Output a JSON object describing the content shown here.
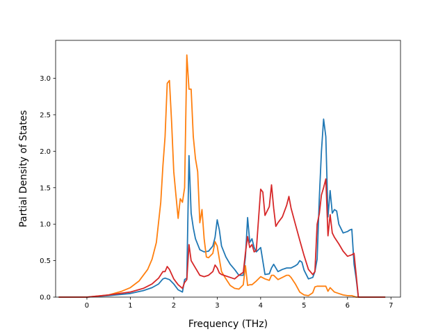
{
  "chart_data": {
    "type": "line",
    "title": "",
    "xlabel": "Frequency (THz)",
    "ylabel": "Partial Density of States",
    "xlim": [
      -0.72,
      7.22
    ],
    "ylim": [
      0.0,
      3.52
    ],
    "xticks": [
      0,
      1,
      2,
      3,
      4,
      5,
      6,
      7
    ],
    "xtick_labels": [
      "0",
      "1",
      "2",
      "3",
      "4",
      "5",
      "6",
      "7"
    ],
    "yticks": [
      0.0,
      0.5,
      1.0,
      1.5,
      2.0,
      2.5,
      3.0
    ],
    "ytick_labels": [
      "0.0",
      "0.5",
      "1.0",
      "1.5",
      "2.0",
      "2.5",
      "3.0"
    ],
    "grid": false,
    "legend": "none",
    "series": [
      {
        "color": "#1f77b4",
        "x": [
          -0.65,
          0.0,
          0.5,
          1.0,
          1.3,
          1.5,
          1.65,
          1.75,
          1.8,
          1.9,
          2.0,
          2.1,
          2.2,
          2.25,
          2.3,
          2.35,
          2.4,
          2.45,
          2.5,
          2.6,
          2.7,
          2.8,
          2.9,
          2.95,
          3.0,
          3.05,
          3.1,
          3.2,
          3.3,
          3.4,
          3.5,
          3.6,
          3.65,
          3.7,
          3.75,
          3.8,
          3.85,
          3.9,
          4.0,
          4.1,
          4.2,
          4.25,
          4.3,
          4.4,
          4.5,
          4.6,
          4.7,
          4.8,
          4.85,
          4.9,
          4.95,
          5.0,
          5.1,
          5.2,
          5.25,
          5.3,
          5.35,
          5.4,
          5.45,
          5.5,
          5.55,
          5.6,
          5.65,
          5.7,
          5.75,
          5.8,
          5.9,
          6.0,
          6.05,
          6.1,
          6.15,
          6.2,
          6.25,
          6.87
        ],
        "y": [
          0.0,
          0.0,
          0.02,
          0.05,
          0.09,
          0.13,
          0.18,
          0.25,
          0.26,
          0.24,
          0.18,
          0.1,
          0.07,
          0.24,
          0.26,
          1.94,
          1.15,
          0.95,
          0.8,
          0.65,
          0.62,
          0.63,
          0.7,
          0.82,
          1.06,
          0.92,
          0.7,
          0.55,
          0.45,
          0.38,
          0.3,
          0.3,
          0.55,
          1.09,
          0.75,
          0.8,
          0.68,
          0.62,
          0.68,
          0.31,
          0.32,
          0.4,
          0.45,
          0.35,
          0.38,
          0.4,
          0.4,
          0.43,
          0.45,
          0.5,
          0.48,
          0.37,
          0.25,
          0.27,
          0.35,
          0.52,
          1.35,
          2.0,
          2.44,
          2.2,
          1.1,
          1.46,
          1.15,
          1.2,
          1.18,
          1.0,
          0.88,
          0.9,
          0.92,
          0.93,
          0.45,
          0.25,
          0.0,
          0.0
        ]
      },
      {
        "color": "#ff7f0e",
        "x": [
          -0.65,
          0.0,
          0.5,
          0.8,
          1.0,
          1.2,
          1.4,
          1.5,
          1.6,
          1.7,
          1.75,
          1.8,
          1.85,
          1.9,
          1.95,
          2.0,
          2.05,
          2.1,
          2.15,
          2.2,
          2.25,
          2.3,
          2.35,
          2.4,
          2.45,
          2.5,
          2.55,
          2.6,
          2.65,
          2.7,
          2.75,
          2.8,
          2.9,
          2.95,
          3.0,
          3.05,
          3.1,
          3.2,
          3.3,
          3.4,
          3.5,
          3.6,
          3.65,
          3.7,
          3.75,
          3.8,
          3.9,
          4.0,
          4.1,
          4.2,
          4.25,
          4.3,
          4.4,
          4.5,
          4.6,
          4.65,
          4.7,
          4.8,
          4.9,
          5.0,
          5.1,
          5.2,
          5.25,
          5.3,
          5.4,
          5.5,
          5.55,
          5.6,
          5.7,
          5.8,
          5.9,
          6.0,
          6.1,
          6.2,
          6.25,
          6.87
        ],
        "y": [
          0.0,
          0.0,
          0.03,
          0.08,
          0.13,
          0.22,
          0.38,
          0.52,
          0.75,
          1.3,
          1.8,
          2.2,
          2.93,
          2.97,
          2.4,
          1.72,
          1.4,
          1.08,
          1.35,
          1.3,
          1.5,
          3.32,
          2.85,
          2.85,
          2.2,
          1.9,
          1.72,
          1.02,
          1.2,
          0.8,
          0.55,
          0.54,
          0.6,
          0.76,
          0.7,
          0.52,
          0.35,
          0.25,
          0.16,
          0.12,
          0.11,
          0.17,
          0.43,
          0.16,
          0.17,
          0.17,
          0.22,
          0.28,
          0.25,
          0.23,
          0.3,
          0.3,
          0.24,
          0.27,
          0.3,
          0.3,
          0.27,
          0.18,
          0.07,
          0.03,
          0.02,
          0.06,
          0.14,
          0.15,
          0.15,
          0.15,
          0.08,
          0.13,
          0.07,
          0.05,
          0.03,
          0.02,
          0.02,
          0.0,
          0.0,
          0.0
        ]
      },
      {
        "color": "#d62728",
        "x": [
          -0.65,
          0.0,
          0.5,
          1.0,
          1.3,
          1.5,
          1.65,
          1.75,
          1.8,
          1.85,
          1.9,
          2.0,
          2.1,
          2.2,
          2.25,
          2.3,
          2.35,
          2.4,
          2.5,
          2.6,
          2.7,
          2.8,
          2.9,
          2.95,
          3.0,
          3.05,
          3.1,
          3.2,
          3.3,
          3.4,
          3.5,
          3.6,
          3.65,
          3.7,
          3.75,
          3.8,
          3.85,
          3.9,
          4.0,
          4.05,
          4.1,
          4.2,
          4.25,
          4.3,
          4.35,
          4.4,
          4.5,
          4.6,
          4.65,
          4.7,
          4.8,
          4.9,
          5.0,
          5.1,
          5.2,
          5.25,
          5.3,
          5.35,
          5.4,
          5.45,
          5.5,
          5.55,
          5.6,
          5.65,
          5.7,
          5.8,
          5.9,
          6.0,
          6.1,
          6.15,
          6.2,
          6.25,
          6.87
        ],
        "y": [
          0.0,
          0.0,
          0.03,
          0.07,
          0.12,
          0.18,
          0.26,
          0.35,
          0.35,
          0.42,
          0.38,
          0.25,
          0.17,
          0.12,
          0.2,
          0.24,
          0.72,
          0.5,
          0.4,
          0.3,
          0.28,
          0.3,
          0.35,
          0.44,
          0.4,
          0.33,
          0.31,
          0.29,
          0.27,
          0.25,
          0.3,
          0.34,
          0.61,
          0.83,
          0.68,
          0.72,
          0.62,
          0.64,
          1.48,
          1.44,
          1.12,
          1.24,
          1.54,
          1.22,
          0.97,
          1.02,
          1.1,
          1.26,
          1.38,
          1.22,
          1.0,
          0.78,
          0.57,
          0.38,
          0.31,
          0.35,
          1.0,
          1.14,
          1.4,
          1.5,
          1.62,
          0.84,
          1.13,
          0.88,
          0.82,
          0.73,
          0.63,
          0.56,
          0.58,
          0.6,
          0.3,
          0.0,
          0.0
        ]
      }
    ]
  }
}
